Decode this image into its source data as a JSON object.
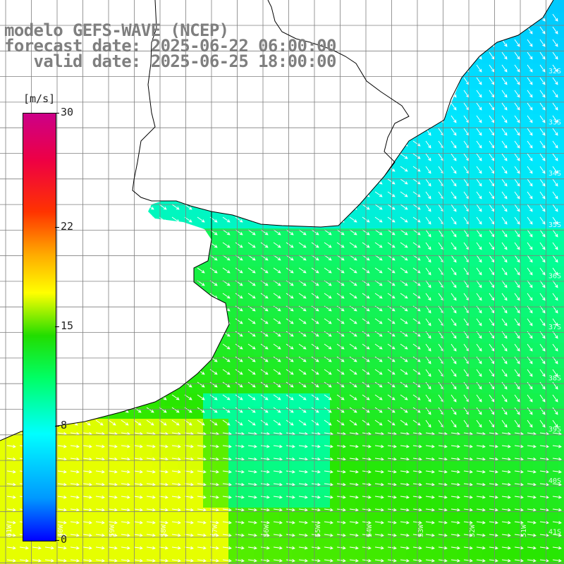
{
  "title": {
    "line1": "modelo GEFS-WAVE (NCEP)",
    "line2": "forecast date: 2025-06-22 06:00:00",
    "line3": "   valid date: 2025-06-25 18:00:00"
  },
  "colorbar": {
    "unit": "[m/s]",
    "ticks": [
      {
        "value": 30,
        "label": "30"
      },
      {
        "value": 22,
        "label": "22"
      },
      {
        "value": 15,
        "label": "15"
      },
      {
        "value": 8,
        "label": "8"
      },
      {
        "value": 0,
        "label": "0"
      }
    ]
  },
  "axes": {
    "lon_labels": [
      "61W",
      "60W",
      "59W",
      "58W",
      "57W",
      "56W",
      "55W",
      "54W",
      "53W",
      "52W",
      "51W"
    ],
    "lat_labels": [
      "32S",
      "33S",
      "34S",
      "35S",
      "36S",
      "37S",
      "38S",
      "39S",
      "40S",
      "41S"
    ]
  },
  "colors": {
    "land": "#ffffff",
    "coast": "#000000",
    "grid": "#7f7f7f",
    "arrows": "#ffffff",
    "title": "#7f7f7f"
  },
  "wind_direction": "from west-northwest"
}
